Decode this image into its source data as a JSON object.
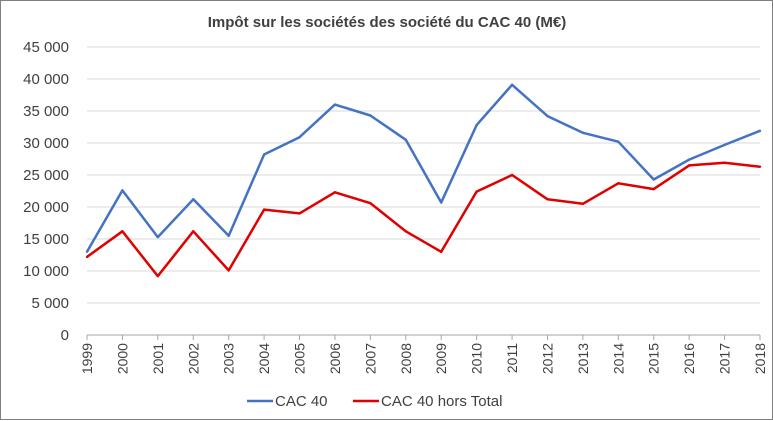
{
  "chart_data": {
    "type": "line",
    "title": "Impôt sur les sociétés des société du CAC 40 (M€)",
    "xlabel": "",
    "ylabel": "",
    "ylim": [
      0,
      45000
    ],
    "y_ticks": [
      0,
      5000,
      10000,
      15000,
      20000,
      25000,
      30000,
      35000,
      40000,
      45000
    ],
    "y_tick_labels": [
      "0",
      "5 000",
      "10 000",
      "15 000",
      "20 000",
      "25 000",
      "30 000",
      "35 000",
      "40 000",
      "45 000"
    ],
    "categories": [
      "1999",
      "2000",
      "2001",
      "2002",
      "2003",
      "2004",
      "2005",
      "2006",
      "2007",
      "2008",
      "2009",
      "2010",
      "2011",
      "2012",
      "2013",
      "2014",
      "2015",
      "2016",
      "2017",
      "2018"
    ],
    "grid": true,
    "legend_position": "bottom",
    "series": [
      {
        "name": "CAC 40",
        "color": "#4472c4",
        "values": [
          13000,
          22600,
          15300,
          21200,
          15500,
          28200,
          30900,
          36000,
          34300,
          30500,
          20700,
          32800,
          39100,
          34200,
          31600,
          30200,
          24300,
          27400,
          29700,
          31900
        ]
      },
      {
        "name": "CAC 40 hors Total",
        "color": "#e00000",
        "values": [
          12200,
          16200,
          9200,
          16200,
          10100,
          19600,
          19000,
          22300,
          20600,
          16200,
          13000,
          22400,
          25000,
          21200,
          20500,
          23700,
          22800,
          26500,
          26900,
          26300
        ]
      }
    ]
  }
}
